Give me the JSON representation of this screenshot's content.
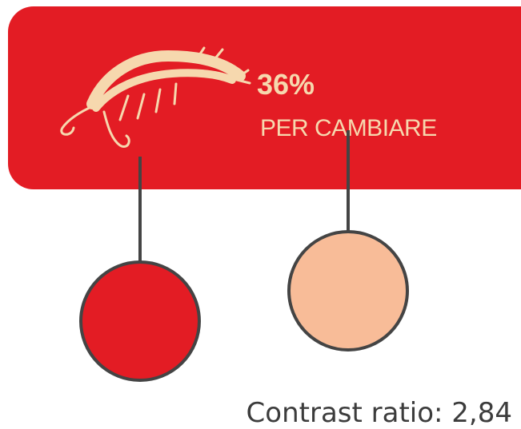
{
  "banner": {
    "percent": "36%",
    "caption": "PER CAMBIARE"
  },
  "footer": {
    "contrast": "Contrast ratio: 2,84"
  }
}
